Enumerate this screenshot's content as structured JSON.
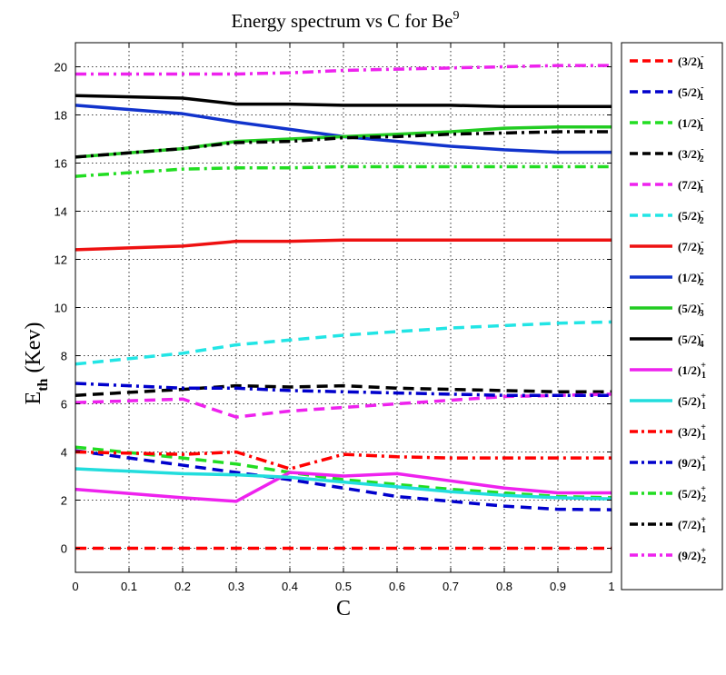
{
  "chart_data": {
    "type": "line",
    "title": "Energy spectrum vs C for Be",
    "title_superscript": "9",
    "xlabel": "C",
    "ylabel": "E",
    "ylabel_subscript": "th",
    "ylabel_suffix": " (Kev)",
    "xlim": [
      0,
      1
    ],
    "ylim": [
      -1,
      21
    ],
    "xticks": [
      "0",
      "0.1",
      "0.2",
      "0.3",
      "0.4",
      "0.5",
      "0.6",
      "0.7",
      "0.8",
      "0.9",
      "1"
    ],
    "yticks": [
      "0",
      "2",
      "4",
      "6",
      "8",
      "10",
      "12",
      "14",
      "16",
      "18",
      "20"
    ],
    "grid": true,
    "legend_position": "outside-right",
    "x": [
      0,
      0.2,
      0.3,
      0.4,
      0.5,
      0.6,
      0.7,
      0.8,
      0.9,
      1.0
    ],
    "series": [
      {
        "name": "(3/2)",
        "sup": "-",
        "sub": "1",
        "color": "#ff0000",
        "style": "dashed",
        "width": 3.5,
        "values": [
          0,
          0,
          0,
          0,
          0,
          0,
          0,
          0,
          0,
          0
        ]
      },
      {
        "name": "(5/2)",
        "sup": "-",
        "sub": "1",
        "color": "#0000cc",
        "style": "dashed",
        "width": 3.5,
        "values": [
          4.05,
          3.45,
          3.15,
          2.85,
          2.5,
          2.15,
          1.95,
          1.75,
          1.62,
          1.6
        ]
      },
      {
        "name": "(1/2)",
        "sup": "-",
        "sub": "1",
        "color": "#22dd22",
        "style": "dashed",
        "width": 3.5,
        "values": [
          4.2,
          3.75,
          3.5,
          3.15,
          2.85,
          2.65,
          2.45,
          2.3,
          2.15,
          2.1
        ]
      },
      {
        "name": "(3/2)",
        "sup": "-",
        "sub": "2",
        "color": "#000000",
        "style": "dashed",
        "width": 3.5,
        "values": [
          6.35,
          6.6,
          6.75,
          6.7,
          6.75,
          6.65,
          6.6,
          6.55,
          6.5,
          6.5
        ]
      },
      {
        "name": "(7/2)",
        "sup": "-",
        "sub": "1",
        "color": "#ee22ee",
        "style": "dashed",
        "width": 3.5,
        "values": [
          6.05,
          6.2,
          5.45,
          5.7,
          5.85,
          6.0,
          6.15,
          6.3,
          6.35,
          6.4
        ]
      },
      {
        "name": "(5/2)",
        "sup": "-",
        "sub": "2",
        "color": "#22e5e5",
        "style": "dashed",
        "width": 3.5,
        "values": [
          7.65,
          8.1,
          8.45,
          8.65,
          8.85,
          9.0,
          9.15,
          9.25,
          9.35,
          9.4
        ]
      },
      {
        "name": "(7/2)",
        "sup": "-",
        "sub": "2",
        "color": "#ee1111",
        "style": "solid",
        "width": 3.5,
        "values": [
          12.4,
          12.55,
          12.75,
          12.75,
          12.8,
          12.8,
          12.8,
          12.8,
          12.8,
          12.8
        ]
      },
      {
        "name": "(1/2)",
        "sup": "-",
        "sub": "2",
        "color": "#1133cc",
        "style": "solid",
        "width": 3.5,
        "values": [
          18.4,
          18.05,
          17.7,
          17.4,
          17.1,
          16.9,
          16.7,
          16.55,
          16.45,
          16.45
        ]
      },
      {
        "name": "(5/2)",
        "sup": "-",
        "sub": "3",
        "color": "#22cc22",
        "style": "solid",
        "width": 3.5,
        "values": [
          16.25,
          16.6,
          16.9,
          17.0,
          17.1,
          17.2,
          17.3,
          17.45,
          17.5,
          17.5
        ]
      },
      {
        "name": "(5/2)",
        "sup": "-",
        "sub": "4",
        "color": "#000000",
        "style": "solid",
        "width": 3.5,
        "values": [
          18.8,
          18.7,
          18.45,
          18.45,
          18.4,
          18.4,
          18.4,
          18.35,
          18.35,
          18.35
        ]
      },
      {
        "name": "(1/2)",
        "sup": "+",
        "sub": "1",
        "color": "#ee22ee",
        "style": "solid",
        "width": 3.5,
        "values": [
          2.45,
          2.1,
          1.95,
          3.15,
          3.0,
          3.1,
          2.8,
          2.5,
          2.3,
          2.3
        ]
      },
      {
        "name": "(5/2)",
        "sup": "+",
        "sub": "1",
        "color": "#22dddd",
        "style": "solid",
        "width": 3.5,
        "values": [
          3.3,
          3.1,
          3.05,
          2.95,
          2.75,
          2.55,
          2.35,
          2.2,
          2.1,
          2.05
        ]
      },
      {
        "name": "(3/2)",
        "sup": "+",
        "sub": "1",
        "color": "#ff0000",
        "style": "dashdot",
        "width": 3.5,
        "values": [
          4.0,
          3.9,
          4.0,
          3.3,
          3.9,
          3.8,
          3.75,
          3.75,
          3.75,
          3.75
        ]
      },
      {
        "name": "(9/2)",
        "sup": "+",
        "sub": "1",
        "color": "#0000cc",
        "style": "dashdot",
        "width": 3.5,
        "values": [
          6.85,
          6.65,
          6.65,
          6.55,
          6.5,
          6.45,
          6.4,
          6.35,
          6.35,
          6.35
        ]
      },
      {
        "name": "(5/2)",
        "sup": "+",
        "sub": "2",
        "color": "#22dd22",
        "style": "dashdot",
        "width": 3.5,
        "values": [
          15.45,
          15.75,
          15.8,
          15.8,
          15.85,
          15.85,
          15.85,
          15.85,
          15.85,
          15.85
        ]
      },
      {
        "name": "(7/2)",
        "sup": "+",
        "sub": "1",
        "color": "#000000",
        "style": "dashdot",
        "width": 3.5,
        "values": [
          16.25,
          16.6,
          16.85,
          16.9,
          17.05,
          17.1,
          17.2,
          17.25,
          17.3,
          17.3
        ]
      },
      {
        "name": "(9/2)",
        "sup": "+",
        "sub": "2",
        "color": "#ee22ee",
        "style": "dashdot",
        "width": 3.5,
        "values": [
          19.7,
          19.7,
          19.7,
          19.75,
          19.85,
          19.9,
          19.95,
          20.0,
          20.05,
          20.05
        ]
      }
    ]
  }
}
